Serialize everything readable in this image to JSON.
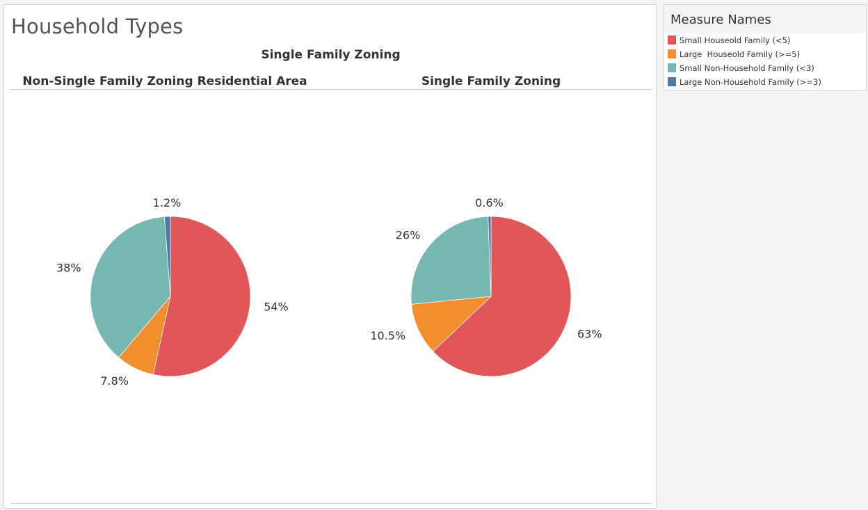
{
  "page_title": "Household Types",
  "legend": {
    "title": "Measure Names",
    "items": [
      {
        "label": "Small Houseold Family (<5)",
        "color": "#e15759"
      },
      {
        "label": "Large  Houseold Family (>=5)",
        "color": "#f28e2b"
      },
      {
        "label": "Small Non-Household Family (<3)",
        "color": "#76b7b2"
      },
      {
        "label": "Large Non-Household Family (>=3)",
        "color": "#4e79a7"
      }
    ]
  },
  "chart_data": {
    "type": "pie",
    "title": "Household Types",
    "header": "Single Family Zoning",
    "panels": [
      {
        "name": "Non-Single Family Zoning Residential Area",
        "slices": [
          {
            "series": "Small Houseold Family (<5)",
            "value": 54,
            "label": "54%"
          },
          {
            "series": "Large  Houseold Family (>=5)",
            "value": 7.8,
            "label": "7.8%"
          },
          {
            "series": "Small Non-Household Family (<3)",
            "value": 38,
            "label": "38%"
          },
          {
            "series": "Large Non-Household Family (>=3)",
            "value": 1.2,
            "label": "1.2%"
          }
        ]
      },
      {
        "name": "Single Family Zoning",
        "slices": [
          {
            "series": "Small Houseold Family (<5)",
            "value": 63,
            "label": "63%"
          },
          {
            "series": "Large  Houseold Family (>=5)",
            "value": 10.5,
            "label": "10.5%"
          },
          {
            "series": "Small Non-Household Family (<3)",
            "value": 26,
            "label": "26%"
          },
          {
            "series": "Large Non-Household Family (>=3)",
            "value": 0.6,
            "label": "0.6%"
          }
        ]
      }
    ]
  }
}
